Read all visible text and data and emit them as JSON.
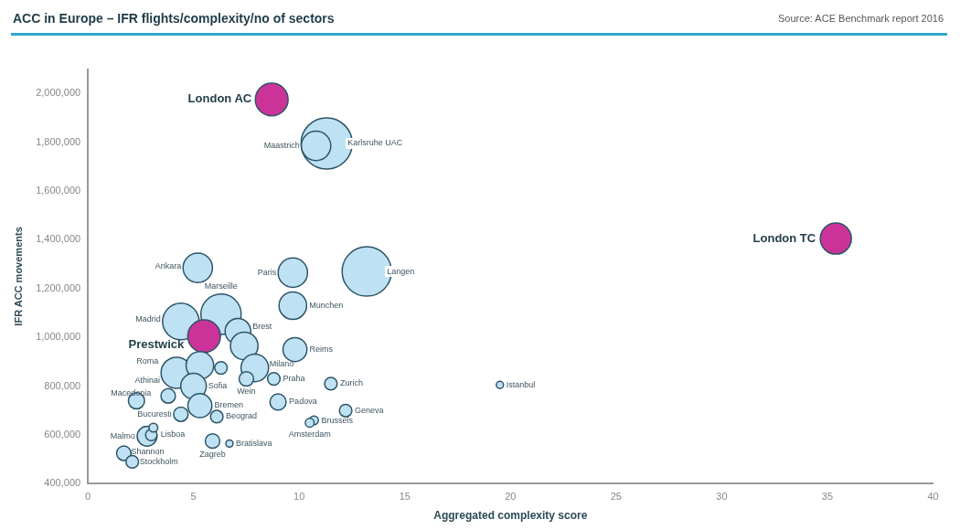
{
  "chart_data": {
    "type": "bubble",
    "title": "ACC in Europe – IFR flights/complexity/no of sectors",
    "xlabel": "Aggregated complexity score",
    "ylabel": "IFR ACC movements",
    "relative": false,
    "x": [
      8.7,
      11.3,
      10.8,
      35.4,
      5.2,
      9.7,
      13.2,
      6.3,
      9.7,
      4.4,
      7.1,
      5.5,
      7.4,
      9.8,
      4.2,
      5.3,
      6.3,
      7.9,
      7.5,
      8.8,
      5.0,
      11.5,
      19.5,
      3.8,
      2.3,
      9.0,
      12.2,
      5.3,
      4.4,
      6.1,
      10.7,
      10.5,
      2.8,
      3.0,
      3.1,
      5.9,
      6.7,
      1.7,
      2.1
    ],
    "values": [
      1975000,
      1795000,
      1785000,
      1405000,
      1285000,
      1265000,
      1270000,
      1095000,
      1130000,
      1065000,
      1025000,
      1005000,
      965000,
      950000,
      855000,
      885000,
      875000,
      875000,
      830000,
      830000,
      800000,
      810000,
      805000,
      760000,
      740000,
      735000,
      700000,
      720000,
      685000,
      675000,
      660000,
      650000,
      595000,
      600000,
      630000,
      575000,
      565000,
      525000,
      490000
    ],
    "sizes": [
      0.41,
      1,
      0.33,
      0.37,
      0.33,
      0.33,
      0.93,
      0.62,
      0.29,
      0.51,
      0.25,
      0.41,
      0.29,
      0.22,
      0.37,
      0.29,
      0.06,
      0.29,
      0.08,
      0.06,
      0.25,
      0.06,
      0.02,
      0.08,
      0.1,
      0.1,
      0.06,
      0.22,
      0.08,
      0.06,
      0.03,
      0.03,
      0.15,
      0.05,
      0.03,
      0.08,
      0.02,
      0.08,
      0.06
    ],
    "colors": [
      "#cc3399",
      "#bfe1f4",
      "#bfe1f4",
      "#cc3399",
      "#bfe1f4",
      "#bfe1f4",
      "#bfe1f4",
      "#bfe1f4",
      "#bfe1f4",
      "#bfe1f4",
      "#bfe1f4",
      "#cc3399",
      "#bfe1f4",
      "#bfe1f4",
      "#bfe1f4",
      "#bfe1f4",
      "#bfe1f4",
      "#bfe1f4",
      "#bfe1f4",
      "#bfe1f4",
      "#bfe1f4",
      "#bfe1f4",
      "#bfe1f4",
      "#bfe1f4",
      "#bfe1f4",
      "#bfe1f4",
      "#bfe1f4",
      "#bfe1f4",
      "#bfe1f4",
      "#bfe1f4",
      "#bfe1f4",
      "#bfe1f4",
      "#bfe1f4",
      "#bfe1f4",
      "#bfe1f4",
      "#bfe1f4",
      "#bfe1f4",
      "#bfe1f4",
      "#bfe1f4"
    ],
    "xlim": [
      0,
      40
    ],
    "xticks": [
      0,
      5,
      10,
      15,
      20,
      25,
      30,
      35,
      40
    ],
    "ylim": [
      400000,
      2100000
    ],
    "yticks": [
      {
        "value": 400000,
        "label": "400,000"
      },
      {
        "value": 600000,
        "label": "600,000"
      },
      {
        "value": 800000,
        "label": "800,000"
      },
      {
        "value": 1000000,
        "label": "1,000,000"
      },
      {
        "value": 1200000,
        "label": "1,200,000"
      },
      {
        "value": 1400000,
        "label": "1,400,000"
      },
      {
        "value": 1600000,
        "label": "1,600,000"
      },
      {
        "value": 1800000,
        "label": "1,800,000"
      },
      {
        "value": 2000000,
        "label": "2,000,000"
      }
    ],
    "grid": false,
    "legend": false,
    "annotations": [
      "Source: ACE Benchmark report 2016",
      {
        "text": "London AC",
        "x": 8.7,
        "y": 1975000
      },
      {
        "text": "Maastrich",
        "x": 10.8,
        "y": 1785000
      },
      {
        "text": "Karlsruhe UAC",
        "x": 11.3,
        "y": 1795000
      },
      {
        "text": "London TC",
        "x": 35.4,
        "y": 1405000
      },
      {
        "text": "Ankara",
        "x": 5.2,
        "y": 1285000
      },
      {
        "text": "Paris",
        "x": 9.7,
        "y": 1265000
      },
      {
        "text": "Langen",
        "x": 13.2,
        "y": 1270000
      },
      {
        "text": "Marseille",
        "x": 6.3,
        "y": 1095000
      },
      {
        "text": "Munchen",
        "x": 9.7,
        "y": 1130000
      },
      {
        "text": "Madrid",
        "x": 4.4,
        "y": 1065000
      },
      {
        "text": "Brest",
        "x": 7.1,
        "y": 1025000
      },
      {
        "text": "Prestwick",
        "x": 5.5,
        "y": 1005000
      },
      {
        "text": "Reims",
        "x": 9.8,
        "y": 950000
      },
      {
        "text": "Roma",
        "x": 4.2,
        "y": 855000
      },
      {
        "text": "Milano",
        "x": 7.9,
        "y": 875000
      },
      {
        "text": "Praha",
        "x": 8.8,
        "y": 830000
      },
      {
        "text": "Wein",
        "x": 7.5,
        "y": 830000
      },
      {
        "text": "Sofia",
        "x": 5.0,
        "y": 800000
      },
      {
        "text": "Zurich",
        "x": 11.5,
        "y": 810000
      },
      {
        "text": "Istanbul",
        "x": 19.5,
        "y": 805000
      },
      {
        "text": "Athinai",
        "x": 3.8,
        "y": 760000
      },
      {
        "text": "Macedonia",
        "x": 2.3,
        "y": 740000
      },
      {
        "text": "Padova",
        "x": 9.0,
        "y": 735000
      },
      {
        "text": "Geneva",
        "x": 12.2,
        "y": 700000
      },
      {
        "text": "Bremen",
        "x": 5.3,
        "y": 720000
      },
      {
        "text": "Bucuresti",
        "x": 4.4,
        "y": 685000
      },
      {
        "text": "Beograd",
        "x": 6.1,
        "y": 675000
      },
      {
        "text": "Brussels",
        "x": 10.7,
        "y": 660000
      },
      {
        "text": "Amsterdam",
        "x": 10.5,
        "y": 650000
      },
      {
        "text": "Malmo",
        "x": 2.8,
        "y": 595000
      },
      {
        "text": "Lisboa",
        "x": 3.1,
        "y": 630000
      },
      {
        "text": "Zagreb",
        "x": 5.9,
        "y": 575000
      },
      {
        "text": "Bratislava",
        "x": 6.7,
        "y": 565000
      },
      {
        "text": "Shannon",
        "x": 1.7,
        "y": 525000
      },
      {
        "text": "Stockholm",
        "x": 2.1,
        "y": 490000
      }
    ]
  }
}
